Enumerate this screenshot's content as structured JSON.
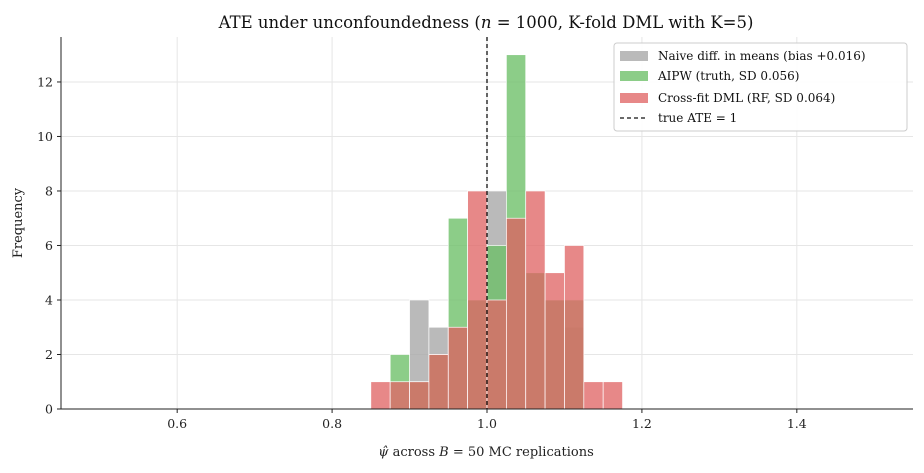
{
  "chart_data": {
    "type": "bar",
    "title": "ATE under unconfoundedness  (n = 1000, K-fold DML with K=5)",
    "xlabel": "ψ̂ across B = 50 MC replications",
    "ylabel": "Frequency",
    "xlim": [
      0.45,
      1.55
    ],
    "ylim": [
      0,
      13.65
    ],
    "xticks": [
      0.6,
      0.8,
      1.0,
      1.2,
      1.4
    ],
    "xtick_labels": [
      "0.6",
      "0.8",
      "1.0",
      "1.2",
      "1.4"
    ],
    "yticks": [
      0,
      2,
      4,
      6,
      8,
      10,
      12
    ],
    "ytick_labels": [
      "0",
      "2",
      "4",
      "6",
      "8",
      "10",
      "12"
    ],
    "grid": true,
    "legend_position": "top-right",
    "bin_width": 0.025,
    "series": [
      {
        "name": "Naive diff. in means  (bias +0.016)",
        "color": "#a6a6a6",
        "bins": [
          0.9,
          0.925,
          0.95,
          0.975,
          1.0,
          1.025,
          1.05,
          1.075,
          1.1
        ],
        "counts": [
          4,
          3,
          3,
          4,
          8,
          7,
          5,
          4,
          3
        ]
      },
      {
        "name": "AIPW (truth, SD 0.056)",
        "color": "#6bbf66",
        "bins": [
          0.875,
          0.9,
          0.925,
          0.95,
          0.975,
          1.0,
          1.025,
          1.05,
          1.075,
          1.1
        ],
        "counts": [
          2,
          1,
          2,
          7,
          4,
          6,
          13,
          5,
          4,
          4
        ]
      },
      {
        "name": "Cross-fit DML (RF, SD 0.064)",
        "color": "#e06666",
        "bins": [
          0.85,
          0.875,
          0.9,
          0.925,
          0.95,
          0.975,
          1.0,
          1.025,
          1.05,
          1.075,
          1.1,
          1.125,
          1.15
        ],
        "counts": [
          1,
          1,
          1,
          2,
          3,
          8,
          4,
          7,
          8,
          5,
          6,
          1,
          1
        ]
      }
    ],
    "vline": {
      "x": 1.0,
      "label": "true ATE = 1",
      "color": "#111111"
    }
  }
}
